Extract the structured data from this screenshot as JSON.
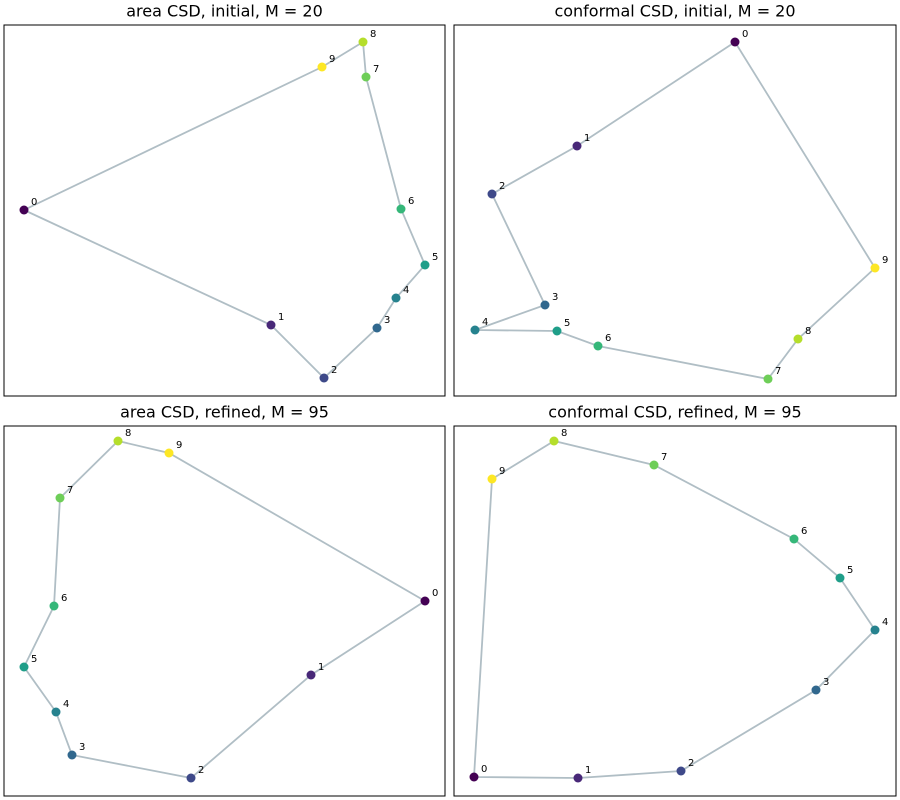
{
  "chart_data": [
    {
      "type": "scatter",
      "title": "area CSD, initial, M = 20",
      "closed": true,
      "line_color": "#b0bec5",
      "xlim": [
        0,
        441
      ],
      "ylim": [
        0,
        371
      ],
      "point_labels": [
        "0",
        "1",
        "2",
        "3",
        "4",
        "5",
        "6",
        "7",
        "8",
        "9"
      ],
      "x": [
        20,
        267,
        320,
        373,
        392,
        421,
        397,
        362,
        359,
        318
      ],
      "y": [
        186,
        71,
        18,
        68,
        98,
        131,
        187,
        319,
        354,
        329
      ],
      "colors": [
        "#440154",
        "#482878",
        "#3e4989",
        "#31688e",
        "#26828e",
        "#1f9e89",
        "#35b779",
        "#6ece58",
        "#b5de2b",
        "#fde725"
      ]
    },
    {
      "type": "scatter",
      "title": "conformal CSD, initial, M = 20",
      "closed": true,
      "line_color": "#b0bec5",
      "xlim": [
        0,
        442
      ],
      "ylim": [
        0,
        371
      ],
      "point_labels": [
        "0",
        "1",
        "2",
        "3",
        "4",
        "5",
        "6",
        "7",
        "8",
        "9"
      ],
      "x": [
        281,
        123,
        38,
        91,
        21,
        103,
        144,
        314,
        344,
        421
      ],
      "y": [
        354,
        250,
        202,
        91,
        66,
        65,
        50,
        17,
        57,
        128
      ],
      "colors": [
        "#440154",
        "#482878",
        "#3e4989",
        "#31688e",
        "#26828e",
        "#1f9e89",
        "#35b779",
        "#6ece58",
        "#b5de2b",
        "#fde725"
      ]
    },
    {
      "type": "scatter",
      "title": "area CSD, refined, M = 95",
      "closed": true,
      "line_color": "#b0bec5",
      "xlim": [
        0,
        441
      ],
      "ylim": [
        0,
        370
      ],
      "point_labels": [
        "0",
        "1",
        "2",
        "3",
        "4",
        "5",
        "6",
        "7",
        "8",
        "9"
      ],
      "x": [
        421,
        307,
        187,
        68,
        52,
        20,
        50,
        56,
        114,
        165
      ],
      "y": [
        195,
        121,
        18,
        41,
        84,
        129,
        190,
        298,
        355,
        343
      ],
      "colors": [
        "#440154",
        "#482878",
        "#3e4989",
        "#31688e",
        "#26828e",
        "#1f9e89",
        "#35b779",
        "#6ece58",
        "#b5de2b",
        "#fde725"
      ]
    },
    {
      "type": "scatter",
      "title": "conformal CSD, refined, M = 95",
      "closed": true,
      "line_color": "#b0bec5",
      "xlim": [
        0,
        442
      ],
      "ylim": [
        0,
        370
      ],
      "point_labels": [
        "0",
        "1",
        "2",
        "3",
        "4",
        "5",
        "6",
        "7",
        "8",
        "9"
      ],
      "x": [
        20,
        124,
        227,
        362,
        421,
        386,
        340,
        200,
        100,
        38
      ],
      "y": [
        19,
        18,
        25,
        106,
        166,
        218,
        257,
        331,
        355,
        317
      ],
      "colors": [
        "#440154",
        "#482878",
        "#3e4989",
        "#31688e",
        "#26828e",
        "#1f9e89",
        "#35b779",
        "#6ece58",
        "#b5de2b",
        "#fde725"
      ]
    }
  ]
}
